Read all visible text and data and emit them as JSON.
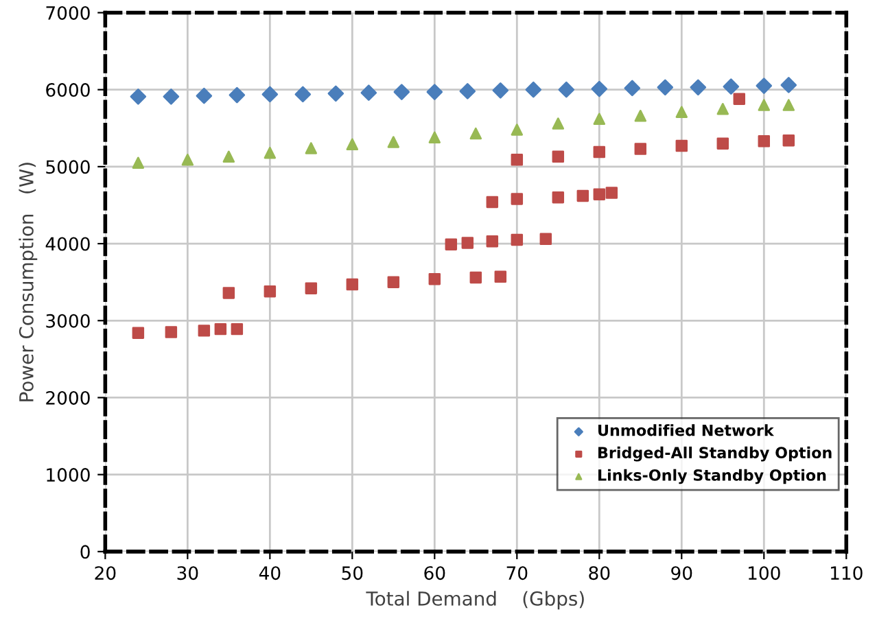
{
  "chart_data": {
    "type": "scatter",
    "xlabel": "Total Demand    (Gbps)",
    "ylabel": "Power Consumption   (W)",
    "xlim": [
      20,
      110
    ],
    "xticks": [
      20,
      30,
      40,
      50,
      60,
      70,
      80,
      90,
      100,
      110
    ],
    "ylim": [
      0,
      7000
    ],
    "yticks": [
      0,
      1000,
      2000,
      3000,
      4000,
      5000,
      6000,
      7000
    ],
    "grid": true,
    "legend": "bottom right",
    "series": [
      {
        "name": "Unmodified Network",
        "color": "#4a7ebb",
        "marker": "diamond",
        "x": [
          24,
          28,
          32,
          36,
          40,
          44,
          48,
          52,
          56,
          60,
          64,
          68,
          72,
          76,
          80,
          84,
          88,
          92,
          96,
          100,
          103
        ],
        "values": [
          5910,
          5910,
          5920,
          5930,
          5940,
          5940,
          5950,
          5960,
          5970,
          5970,
          5980,
          5990,
          6000,
          6000,
          6010,
          6020,
          6030,
          6030,
          6040,
          6050,
          6060
        ]
      },
      {
        "name": "Bridged-All Standby Option",
        "color": "#be4b48",
        "marker": "square",
        "x": [
          24,
          28,
          32,
          34,
          36,
          35,
          40,
          45,
          50,
          55,
          60,
          65,
          68,
          62,
          64,
          67,
          70,
          73.5,
          67,
          70,
          75,
          78,
          80,
          81.5,
          70,
          75,
          80,
          85,
          90,
          95,
          100,
          103,
          97
        ],
        "values": [
          2840,
          2850,
          2870,
          2890,
          2890,
          3360,
          3380,
          3420,
          3470,
          3500,
          3540,
          3560,
          3570,
          3990,
          4010,
          4030,
          4050,
          4060,
          4540,
          4580,
          4600,
          4620,
          4640,
          4660,
          5090,
          5130,
          5190,
          5230,
          5270,
          5300,
          5330,
          5340,
          5880
        ]
      },
      {
        "name": "Links-Only Standby Option",
        "color": "#98b954",
        "marker": "triangle",
        "x": [
          24,
          30,
          35,
          40,
          45,
          50,
          55,
          60,
          65,
          70,
          75,
          80,
          85,
          90,
          95,
          100,
          103
        ],
        "values": [
          5050,
          5090,
          5130,
          5180,
          5240,
          5290,
          5320,
          5380,
          5430,
          5480,
          5560,
          5620,
          5660,
          5710,
          5750,
          5800,
          5800
        ]
      }
    ]
  }
}
